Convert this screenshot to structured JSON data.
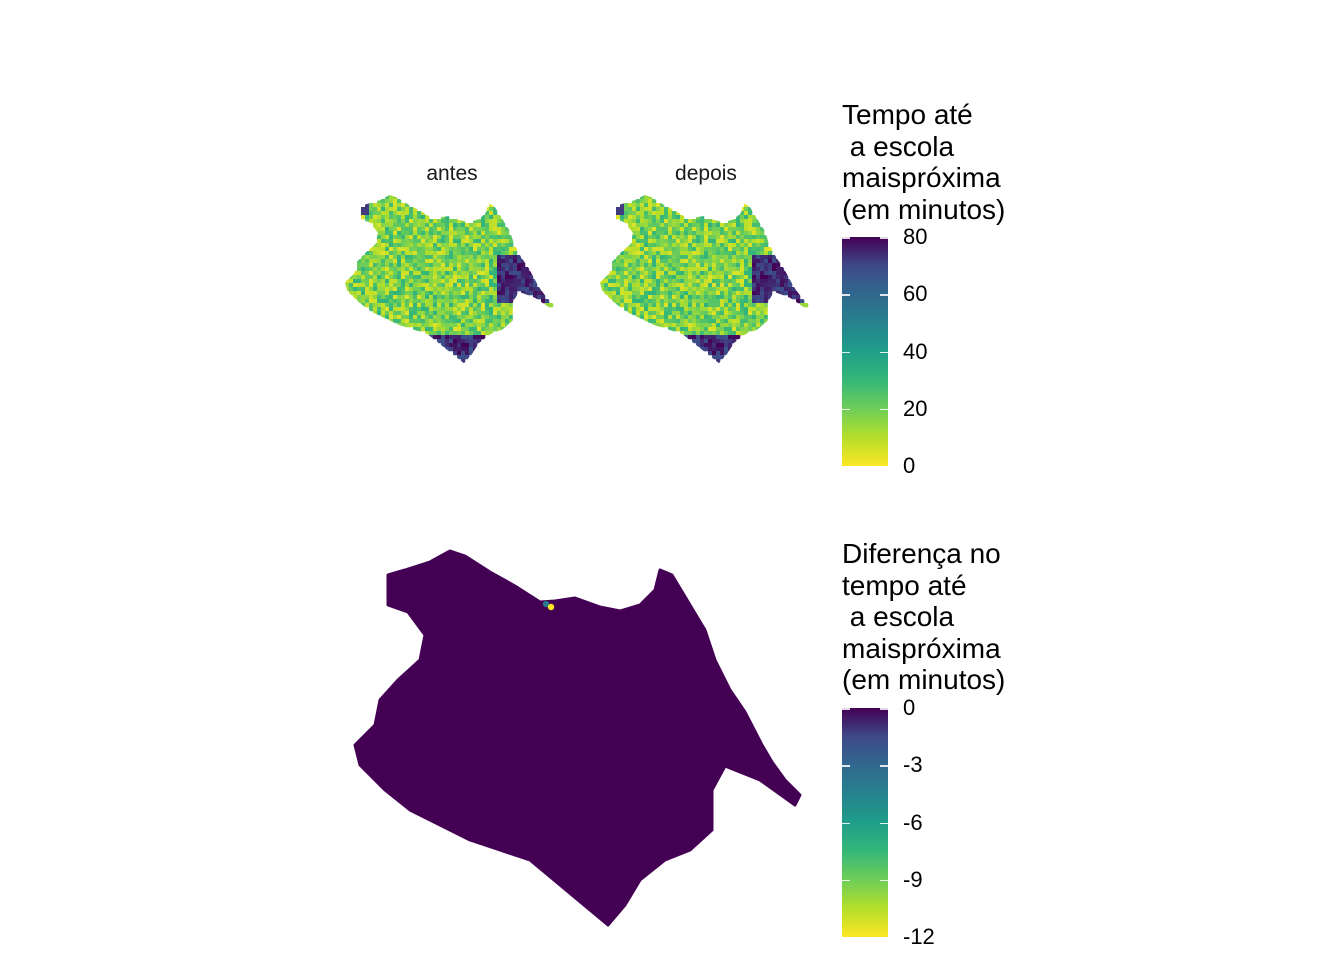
{
  "facets": {
    "before": "antes",
    "after": "depois"
  },
  "legend_time": {
    "title": "Tempo até\n a escola\nmaispróxima\n(em minutos)",
    "ticks": [
      "80",
      "60",
      "40",
      "20",
      "0"
    ],
    "tick_values": [
      80,
      60,
      40,
      20,
      0
    ],
    "range": [
      0,
      80
    ]
  },
  "legend_diff": {
    "title": "Diferença no\ntempo até\n a escola\nmaispróxima\n(em minutos)",
    "ticks": [
      "0",
      "-3",
      "-6",
      "-9",
      "-12"
    ],
    "tick_values": [
      0,
      -3,
      -6,
      -9,
      -12
    ],
    "range": [
      -12,
      0
    ]
  },
  "colors": {
    "viridis_low": "#fde725",
    "viridis_mid": "#21918c",
    "viridis_high": "#440154",
    "background": "#ffffff"
  }
}
